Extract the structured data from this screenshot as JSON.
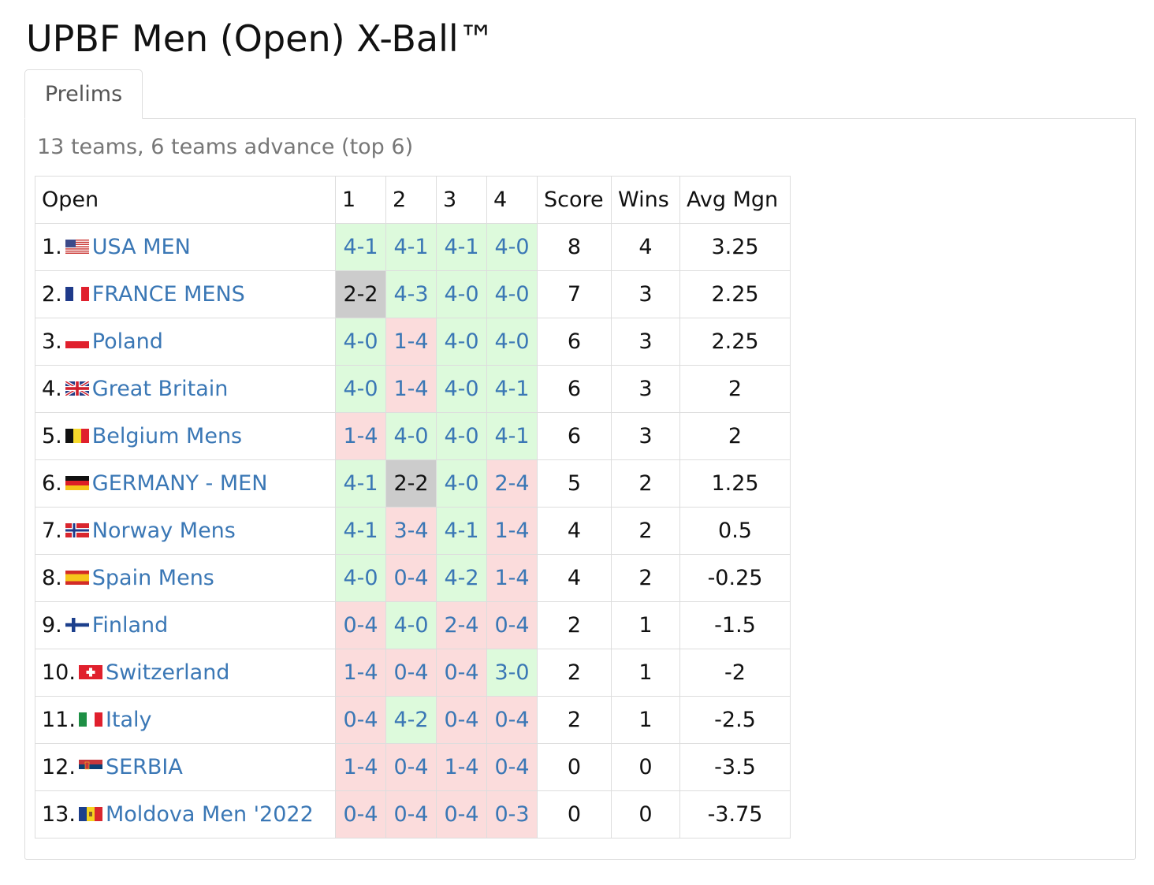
{
  "page": {
    "title": "UPBF Men (Open) X-Ball™",
    "tab_label": "Prelims",
    "summary": "13 teams, 6 teams advance (top 6)"
  },
  "table": {
    "headers": {
      "team": "Open",
      "r1": "1",
      "r2": "2",
      "r3": "3",
      "r4": "4",
      "score": "Score",
      "wins": "Wins",
      "avg": "Avg Mgn"
    },
    "rows": [
      {
        "rank": "1.",
        "flag": "usa-flag-icon",
        "team": "USA MEN",
        "r": [
          "4-1",
          "4-1",
          "4-1",
          "4-0"
        ],
        "res": [
          "win",
          "win",
          "win",
          "win"
        ],
        "score": "8",
        "wins": "4",
        "avg": "3.25"
      },
      {
        "rank": "2.",
        "flag": "france-flag-icon",
        "team": "FRANCE MENS",
        "r": [
          "2-2",
          "4-3",
          "4-0",
          "4-0"
        ],
        "res": [
          "tie",
          "win",
          "win",
          "win"
        ],
        "score": "7",
        "wins": "3",
        "avg": "2.25"
      },
      {
        "rank": "3.",
        "flag": "poland-flag-icon",
        "team": "Poland",
        "r": [
          "4-0",
          "1-4",
          "4-0",
          "4-0"
        ],
        "res": [
          "win",
          "loss",
          "win",
          "win"
        ],
        "score": "6",
        "wins": "3",
        "avg": "2.25"
      },
      {
        "rank": "4.",
        "flag": "uk-flag-icon",
        "team": "Great Britain",
        "r": [
          "4-0",
          "1-4",
          "4-0",
          "4-1"
        ],
        "res": [
          "win",
          "loss",
          "win",
          "win"
        ],
        "score": "6",
        "wins": "3",
        "avg": "2"
      },
      {
        "rank": "5.",
        "flag": "belgium-flag-icon",
        "team": "Belgium Mens",
        "r": [
          "1-4",
          "4-0",
          "4-0",
          "4-1"
        ],
        "res": [
          "loss",
          "win",
          "win",
          "win"
        ],
        "score": "6",
        "wins": "3",
        "avg": "2"
      },
      {
        "rank": "6.",
        "flag": "germany-flag-icon",
        "team": "GERMANY - MEN",
        "r": [
          "4-1",
          "2-2",
          "4-0",
          "2-4"
        ],
        "res": [
          "win",
          "tie",
          "win",
          "loss"
        ],
        "score": "5",
        "wins": "2",
        "avg": "1.25"
      },
      {
        "rank": "7.",
        "flag": "norway-flag-icon",
        "team": "Norway Mens",
        "r": [
          "4-1",
          "3-4",
          "4-1",
          "1-4"
        ],
        "res": [
          "win",
          "loss",
          "win",
          "loss"
        ],
        "score": "4",
        "wins": "2",
        "avg": "0.5"
      },
      {
        "rank": "8.",
        "flag": "spain-flag-icon",
        "team": "Spain Mens",
        "r": [
          "4-0",
          "0-4",
          "4-2",
          "1-4"
        ],
        "res": [
          "win",
          "loss",
          "win",
          "loss"
        ],
        "score": "4",
        "wins": "2",
        "avg": "-0.25"
      },
      {
        "rank": "9.",
        "flag": "finland-flag-icon",
        "team": "Finland",
        "r": [
          "0-4",
          "4-0",
          "2-4",
          "0-4"
        ],
        "res": [
          "loss",
          "win",
          "loss",
          "loss"
        ],
        "score": "2",
        "wins": "1",
        "avg": "-1.5"
      },
      {
        "rank": "10.",
        "flag": "switzerland-flag-icon",
        "team": "Switzerland",
        "r": [
          "1-4",
          "0-4",
          "0-4",
          "3-0"
        ],
        "res": [
          "loss",
          "loss",
          "loss",
          "win"
        ],
        "score": "2",
        "wins": "1",
        "avg": "-2"
      },
      {
        "rank": "11.",
        "flag": "italy-flag-icon",
        "team": "Italy",
        "r": [
          "0-4",
          "4-2",
          "0-4",
          "0-4"
        ],
        "res": [
          "loss",
          "win",
          "loss",
          "loss"
        ],
        "score": "2",
        "wins": "1",
        "avg": "-2.5"
      },
      {
        "rank": "12.",
        "flag": "serbia-flag-icon",
        "team": "SERBIA",
        "r": [
          "1-4",
          "0-4",
          "1-4",
          "0-4"
        ],
        "res": [
          "loss",
          "loss",
          "loss",
          "loss"
        ],
        "score": "0",
        "wins": "0",
        "avg": "-3.5"
      },
      {
        "rank": "13.",
        "flag": "moldova-flag-icon",
        "team": "Moldova Men '2022",
        "r": [
          "0-4",
          "0-4",
          "0-4",
          "0-3"
        ],
        "res": [
          "loss",
          "loss",
          "loss",
          "loss"
        ],
        "score": "0",
        "wins": "0",
        "avg": "-3.75"
      }
    ]
  },
  "colors": {
    "link": "#3a77b5",
    "win_bg": "#ddfadc",
    "loss_bg": "#fbdcdc",
    "tie_bg": "#cccccc",
    "border": "#dddddd"
  }
}
